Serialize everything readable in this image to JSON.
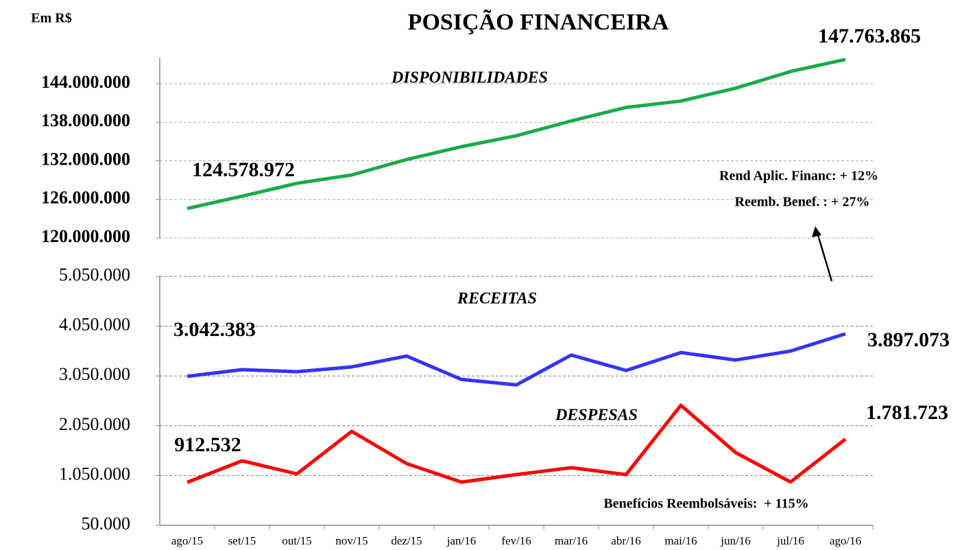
{
  "unit": "Em R$",
  "title": "POSIÇÃO FINANCEIRA",
  "chart_data": [
    {
      "type": "line",
      "ylim": [
        120000000,
        148000000
      ],
      "yticks": [
        {
          "value": 120000000,
          "label": "120.000.000"
        },
        {
          "value": 126000000,
          "label": "126.000.000"
        },
        {
          "value": 132000000,
          "label": "132.000.000"
        },
        {
          "value": 138000000,
          "label": "138.000.000"
        },
        {
          "value": 144000000,
          "label": "144.000.000"
        }
      ],
      "grid": true,
      "series": [
        {
          "name": "DISPONIBILIDADES",
          "color": "#1aaa4b",
          "values": [
            124578972,
            126500000,
            128500000,
            129800000,
            132200000,
            134200000,
            135900000,
            138200000,
            140300000,
            141300000,
            143300000,
            145900000,
            147763865
          ],
          "value_labels": [
            "124.578.972",
            null,
            null,
            null,
            null,
            null,
            null,
            null,
            null,
            null,
            null,
            null,
            "147.763.865"
          ]
        }
      ],
      "annotations": [
        "Rend Aplic. Financ: + 12%",
        "Reemb. Benef. : + 27%"
      ]
    },
    {
      "type": "line",
      "categories": [
        "ago/15",
        "set/15",
        "out/15",
        "nov/15",
        "dez/15",
        "jan/16",
        "fev/16",
        "mar/16",
        "abr/16",
        "mai/16",
        "jun/16",
        "jul/16",
        "ago/16"
      ],
      "ylim": [
        50000,
        5050000
      ],
      "yticks": [
        {
          "value": 50000,
          "label": "50.000"
        },
        {
          "value": 1050000,
          "label": "1.050.000"
        },
        {
          "value": 2050000,
          "label": "2.050.000"
        },
        {
          "value": 3050000,
          "label": "3.050.000"
        },
        {
          "value": 4050000,
          "label": "4.050.000"
        },
        {
          "value": 5050000,
          "label": "5.050.000"
        }
      ],
      "grid": true,
      "series": [
        {
          "name": "RECEITAS",
          "color": "#3333ff",
          "values": [
            3042383,
            3177000,
            3135000,
            3232000,
            3450000,
            2980000,
            2870000,
            3470000,
            3160000,
            3520000,
            3370000,
            3550000,
            3897073
          ],
          "value_labels": [
            "3.042.383",
            null,
            null,
            null,
            null,
            null,
            null,
            null,
            null,
            null,
            null,
            null,
            "3.897.073"
          ]
        },
        {
          "name": "DESPESAS",
          "color": "#ff0000",
          "values": [
            912532,
            1345000,
            1083000,
            1937000,
            1290000,
            918000,
            1069000,
            1207000,
            1069000,
            2460000,
            1510000,
            920000,
            1781723
          ],
          "value_labels": [
            "912.532",
            null,
            null,
            null,
            null,
            null,
            null,
            null,
            null,
            null,
            null,
            null,
            "1.781.723"
          ]
        }
      ],
      "annotations": [
        "Benefícios Reembolsáveis:  + 115%"
      ]
    }
  ]
}
